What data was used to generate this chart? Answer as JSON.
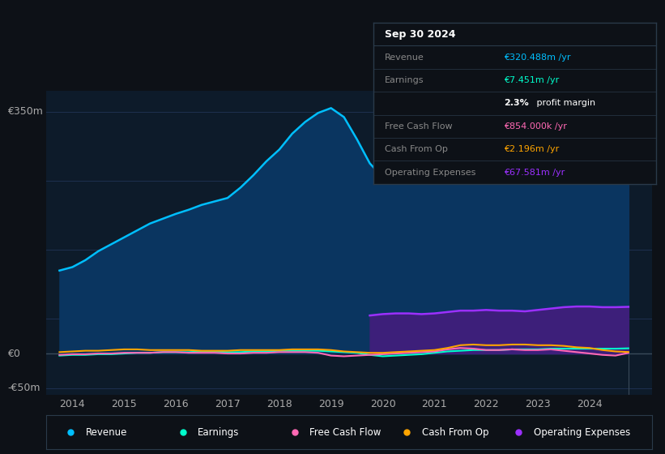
{
  "bg_color": "#0d1117",
  "plot_bg_color": "#0d1b2a",
  "grid_color": "#1e3050",
  "text_color": "#aaaaaa",
  "title_color": "#ffffff",
  "y_label_350": "€350m",
  "y_label_0": "€0",
  "y_label_neg50": "-€50m",
  "ylim": [
    -60,
    380
  ],
  "xlim_start": 2013.5,
  "xlim_end": 2025.2,
  "x_ticks": [
    2014,
    2015,
    2016,
    2017,
    2018,
    2019,
    2020,
    2021,
    2022,
    2023,
    2024
  ],
  "series": {
    "revenue": {
      "color": "#00bfff",
      "fill_color": "#0a3560",
      "label": "Revenue",
      "values_x": [
        2013.75,
        2014.0,
        2014.25,
        2014.5,
        2014.75,
        2015.0,
        2015.25,
        2015.5,
        2015.75,
        2016.0,
        2016.25,
        2016.5,
        2016.75,
        2017.0,
        2017.25,
        2017.5,
        2017.75,
        2018.0,
        2018.25,
        2018.5,
        2018.75,
        2019.0,
        2019.25,
        2019.5,
        2019.75,
        2020.0,
        2020.25,
        2020.5,
        2020.75,
        2021.0,
        2021.25,
        2021.5,
        2021.75,
        2022.0,
        2022.25,
        2022.5,
        2022.75,
        2023.0,
        2023.25,
        2023.5,
        2023.75,
        2024.0,
        2024.25,
        2024.5,
        2024.75
      ],
      "values_y": [
        120,
        125,
        135,
        148,
        158,
        168,
        178,
        188,
        195,
        202,
        208,
        215,
        220,
        225,
        240,
        258,
        278,
        295,
        318,
        335,
        348,
        355,
        342,
        310,
        275,
        255,
        258,
        262,
        270,
        275,
        285,
        295,
        305,
        305,
        308,
        310,
        308,
        305,
        310,
        318,
        328,
        330,
        322,
        318,
        320
      ]
    },
    "earnings": {
      "color": "#00ffcc",
      "label": "Earnings",
      "values_x": [
        2013.75,
        2014.0,
        2014.25,
        2014.5,
        2014.75,
        2015.0,
        2015.25,
        2015.5,
        2015.75,
        2016.0,
        2016.25,
        2016.5,
        2016.75,
        2017.0,
        2017.25,
        2017.5,
        2017.75,
        2018.0,
        2018.25,
        2018.5,
        2018.75,
        2019.0,
        2019.25,
        2019.5,
        2019.75,
        2020.0,
        2020.25,
        2020.5,
        2020.75,
        2021.0,
        2021.25,
        2021.5,
        2021.75,
        2022.0,
        2022.25,
        2022.5,
        2022.75,
        2023.0,
        2023.25,
        2023.5,
        2023.75,
        2024.0,
        2024.25,
        2024.5,
        2024.75
      ],
      "values_y": [
        -3,
        -2,
        -2,
        -1,
        -1,
        0,
        1,
        1,
        2,
        2,
        2,
        3,
        3,
        2,
        2,
        3,
        3,
        4,
        4,
        4,
        4,
        3,
        2,
        1,
        -2,
        -4,
        -3,
        -2,
        -1,
        1,
        3,
        4,
        5,
        5,
        5,
        6,
        6,
        6,
        7,
        7,
        7,
        7,
        7,
        7,
        7.5
      ]
    },
    "free_cash_flow": {
      "color": "#ff69b4",
      "label": "Free Cash Flow",
      "values_x": [
        2013.75,
        2014.0,
        2014.25,
        2014.5,
        2014.75,
        2015.0,
        2015.25,
        2015.5,
        2015.75,
        2016.0,
        2016.25,
        2016.5,
        2016.75,
        2017.0,
        2017.25,
        2017.5,
        2017.75,
        2018.0,
        2018.25,
        2018.5,
        2018.75,
        2019.0,
        2019.25,
        2019.5,
        2019.75,
        2020.0,
        2020.25,
        2020.5,
        2020.75,
        2021.0,
        2021.25,
        2021.5,
        2021.75,
        2022.0,
        2022.25,
        2022.5,
        2022.75,
        2023.0,
        2023.25,
        2023.5,
        2023.75,
        2024.0,
        2024.25,
        2024.5,
        2024.75
      ],
      "values_y": [
        -2,
        -1,
        -1,
        0,
        0,
        1,
        1,
        1,
        2,
        2,
        1,
        1,
        1,
        0,
        0,
        1,
        1,
        2,
        2,
        2,
        1,
        -3,
        -4,
        -3,
        -2,
        -1,
        0,
        1,
        2,
        3,
        6,
        8,
        7,
        5,
        5,
        6,
        5,
        5,
        6,
        4,
        2,
        0,
        -2,
        -3,
        0.9
      ]
    },
    "cash_from_op": {
      "color": "#ffa500",
      "label": "Cash From Op",
      "values_x": [
        2013.75,
        2014.0,
        2014.25,
        2014.5,
        2014.75,
        2015.0,
        2015.25,
        2015.5,
        2015.75,
        2016.0,
        2016.25,
        2016.5,
        2016.75,
        2017.0,
        2017.25,
        2017.5,
        2017.75,
        2018.0,
        2018.25,
        2018.5,
        2018.75,
        2019.0,
        2019.25,
        2019.5,
        2019.75,
        2020.0,
        2020.25,
        2020.5,
        2020.75,
        2021.0,
        2021.25,
        2021.5,
        2021.75,
        2022.0,
        2022.25,
        2022.5,
        2022.75,
        2023.0,
        2023.25,
        2023.5,
        2023.75,
        2024.0,
        2024.25,
        2024.5,
        2024.75
      ],
      "values_y": [
        2,
        3,
        4,
        4,
        5,
        6,
        6,
        5,
        5,
        5,
        5,
        4,
        4,
        4,
        5,
        5,
        5,
        5,
        6,
        6,
        6,
        5,
        3,
        2,
        1,
        1,
        2,
        3,
        4,
        5,
        8,
        12,
        13,
        12,
        12,
        13,
        13,
        12,
        12,
        11,
        9,
        8,
        5,
        3,
        2.2
      ]
    },
    "operating_expenses": {
      "color": "#9b30ff",
      "fill_color": "#3d1f7a",
      "label": "Operating Expenses",
      "values_x": [
        2019.75,
        2020.0,
        2020.25,
        2020.5,
        2020.75,
        2021.0,
        2021.25,
        2021.5,
        2021.75,
        2022.0,
        2022.25,
        2022.5,
        2022.75,
        2023.0,
        2023.25,
        2023.5,
        2023.75,
        2024.0,
        2024.25,
        2024.5,
        2024.75
      ],
      "values_y": [
        55,
        57,
        58,
        58,
        57,
        58,
        60,
        62,
        62,
        63,
        62,
        62,
        61,
        63,
        65,
        67,
        68,
        68,
        67,
        67,
        67.5
      ]
    }
  },
  "tooltip": {
    "date": "Sep 30 2024",
    "bg": "#0d1117",
    "border": "#2a3a4a",
    "rows": [
      {
        "label": "Revenue",
        "value": "€320.488m /yr",
        "value_color": "#00bfff"
      },
      {
        "label": "Earnings",
        "value": "€7.451m /yr",
        "value_color": "#00ffcc"
      },
      {
        "label": "",
        "value": "profit margin",
        "value_color": "#ffffff",
        "bold_part": "2.3%"
      },
      {
        "label": "Free Cash Flow",
        "value": "€854.000k /yr",
        "value_color": "#ff69b4"
      },
      {
        "label": "Cash From Op",
        "value": "€2.196m /yr",
        "value_color": "#ffa500"
      },
      {
        "label": "Operating Expenses",
        "value": "€67.581m /yr",
        "value_color": "#9b30ff"
      }
    ]
  },
  "legend": [
    {
      "label": "Revenue",
      "color": "#00bfff"
    },
    {
      "label": "Earnings",
      "color": "#00ffcc"
    },
    {
      "label": "Free Cash Flow",
      "color": "#ff69b4"
    },
    {
      "label": "Cash From Op",
      "color": "#ffa500"
    },
    {
      "label": "Operating Expenses",
      "color": "#9b30ff"
    }
  ]
}
